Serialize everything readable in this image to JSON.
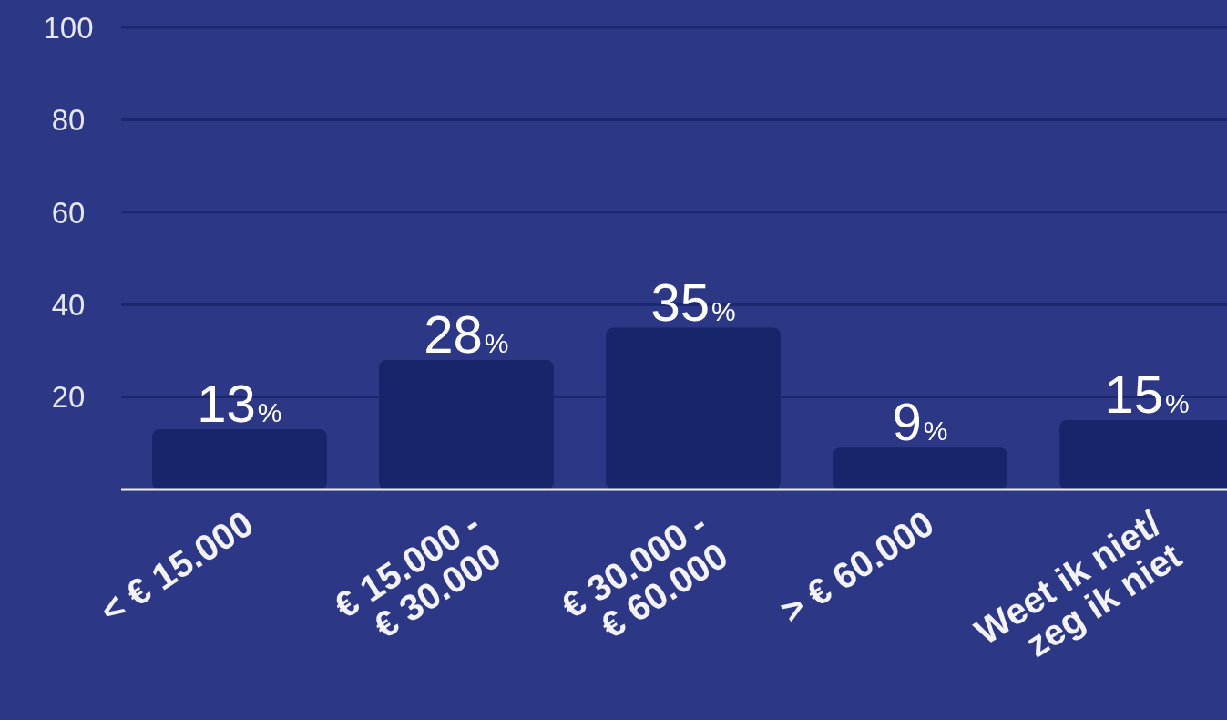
{
  "chart_data": {
    "type": "bar",
    "categories": [
      "< € 15.000",
      "€ 15.000 -\n€ 30.000",
      "€ 30.000 -\n€ 60.000",
      "> € 60.000",
      "Weet ik niet/\nzeg ik niet"
    ],
    "values": [
      13,
      28,
      35,
      9,
      15
    ],
    "value_labels": [
      "13%",
      "28%",
      "35%",
      "9%",
      "15%"
    ],
    "color": "#17256b",
    "ylim": [
      0,
      100
    ],
    "yticks": [
      {
        "value": 0,
        "label": null
      },
      20,
      40,
      60,
      80,
      100
    ],
    "grid": "y"
  }
}
